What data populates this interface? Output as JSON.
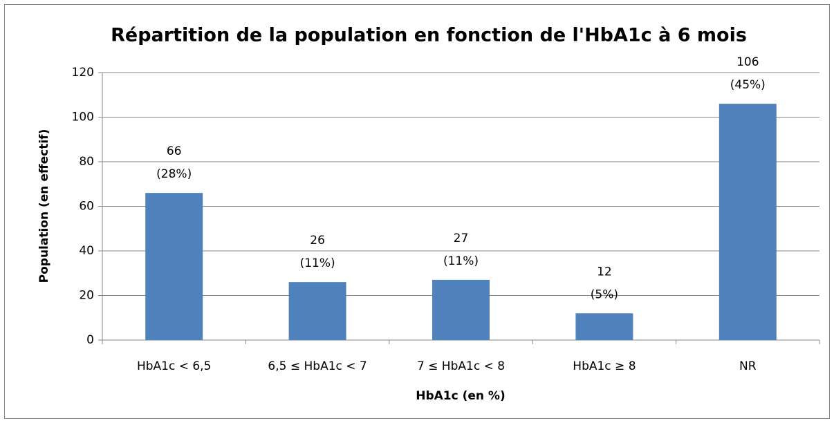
{
  "chart_data": {
    "type": "bar",
    "title": "Répartition de la population en fonction de l'HbA1c à 6 mois",
    "x_label": "HbA1c (en %)",
    "y_label": "Population (en effectif)",
    "categories": [
      "HbA1c < 6,5",
      "6,5 ≤ HbA1c < 7",
      "7 ≤ HbA1c < 8",
      "HbA1c ≥ 8",
      "NR"
    ],
    "values": [
      66,
      26,
      27,
      12,
      106
    ],
    "share_labels": [
      "(28%)",
      "(11%)",
      "(11%)",
      "(5%)",
      "(45%)"
    ],
    "color": "#4f81bd",
    "ylim": [
      0,
      120
    ],
    "yticks": [
      0,
      20,
      40,
      60,
      80,
      100,
      120
    ],
    "grid": true
  }
}
